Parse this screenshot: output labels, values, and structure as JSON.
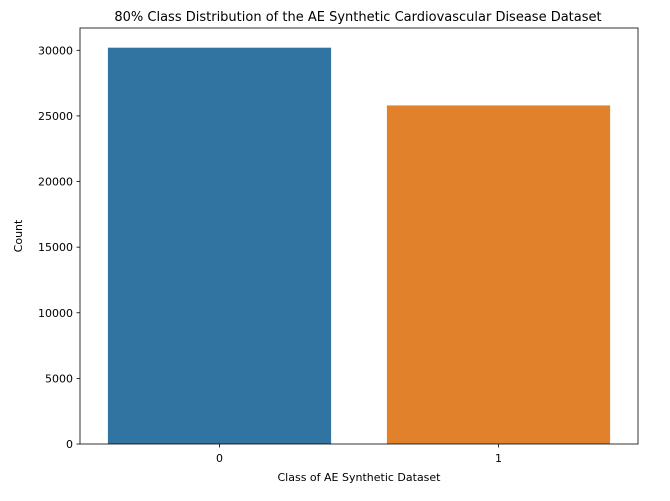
{
  "chart_data": {
    "type": "bar",
    "title": "80% Class Distribution of the AE Synthetic Cardiovascular Disease Dataset",
    "xlabel": "Class of AE Synthetic Dataset",
    "ylabel": "Count",
    "categories": [
      "0",
      "1"
    ],
    "values": [
      30200,
      25800
    ],
    "colors": [
      "#3274a1",
      "#e1812c"
    ],
    "ylim": [
      0,
      31700
    ],
    "yticks": [
      0,
      5000,
      10000,
      15000,
      20000,
      25000,
      30000
    ],
    "ytick_labels": [
      "0",
      "5000",
      "10000",
      "15000",
      "20000",
      "25000",
      "30000"
    ],
    "grid": false,
    "legend": "none"
  }
}
